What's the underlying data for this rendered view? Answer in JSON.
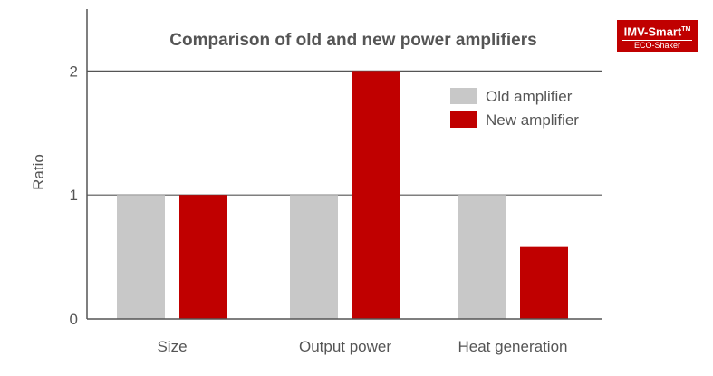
{
  "chart_data": {
    "type": "bar",
    "title": "Comparison of old and new power amplifiers",
    "xlabel": "",
    "ylabel": "Ratio",
    "categories": [
      "Size",
      "Output power",
      "Heat generation"
    ],
    "series": [
      {
        "name": "Old amplifier",
        "values": [
          1,
          1,
          1
        ],
        "color": "#c8c8c8"
      },
      {
        "name": "New amplifier",
        "values": [
          1,
          2,
          0.58
        ],
        "color": "#c00000"
      }
    ],
    "ylim": [
      0,
      2.5
    ],
    "yticks": [
      0,
      1,
      2
    ],
    "grid": true,
    "legend": "top-right"
  },
  "logo": {
    "brand": "IMV-Smart",
    "trademark": "TM",
    "subtitle": "ECO-Shaker"
  }
}
